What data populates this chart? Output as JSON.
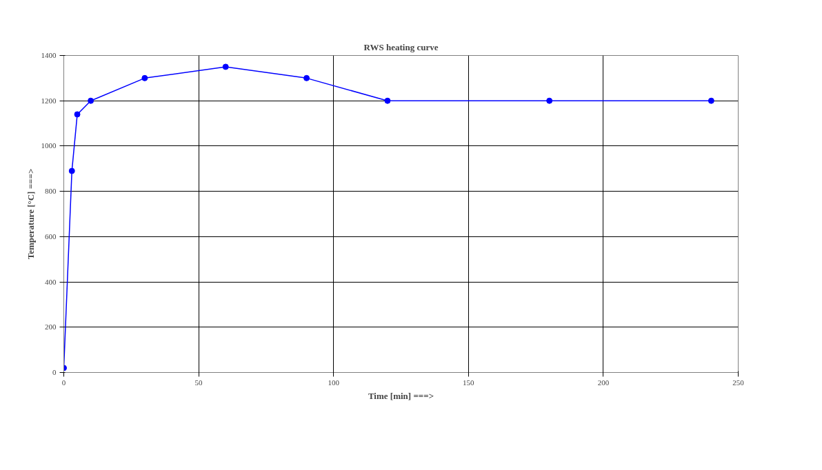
{
  "chart_data": {
    "type": "line",
    "title": "RWS heating curve",
    "xlabel": "Time [min] ===>",
    "ylabel": "Temperature [°C] ===>",
    "x": [
      0,
      3,
      5,
      10,
      30,
      60,
      90,
      120,
      180,
      240
    ],
    "series": [
      {
        "color": "#0000ff",
        "values": [
          20,
          890,
          1140,
          1200,
          1300,
          1350,
          1300,
          1200,
          1200,
          1200
        ]
      }
    ],
    "xlim": [
      0,
      250
    ],
    "xticks": [
      0,
      50,
      100,
      150,
      200,
      250
    ],
    "ylim": [
      0,
      1400
    ],
    "yticks": [
      0,
      200,
      400,
      600,
      800,
      1000,
      1200,
      1400
    ],
    "grid": true,
    "marker": "circle",
    "line_style": "solid"
  }
}
